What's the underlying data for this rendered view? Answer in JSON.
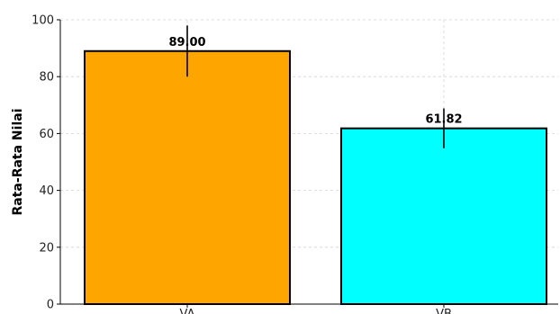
{
  "chart_data": {
    "type": "bar",
    "categories": [
      "VA",
      "VB"
    ],
    "values": [
      89.0,
      61.82
    ],
    "error": [
      9,
      7
    ],
    "data_labels": [
      "89.00",
      "61.82"
    ],
    "colors": [
      "#ffa500",
      "#00ffff"
    ],
    "edge_color": "#000000",
    "title": "",
    "xlabel": "",
    "ylabel": "Rata-Rata Nilai",
    "ylim": [
      0,
      100
    ],
    "yticks": [
      0,
      20,
      40,
      60,
      80,
      100
    ],
    "ytick_labels": [
      "0",
      "20",
      "40",
      "60",
      "80",
      "100"
    ],
    "grid": true
  }
}
